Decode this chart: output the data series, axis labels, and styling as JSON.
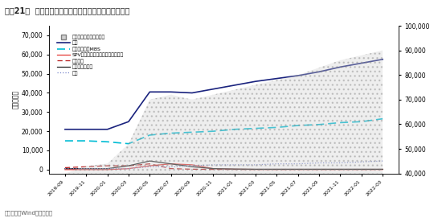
{
  "title": "图表21：  海外流动性总量：美联储资产负债表缓慢扩张",
  "footnote": "资料来源：Wind，华泰研究",
  "ylabel_left": "（亿美元）",
  "ylabel_right": "总资产（右轴，亿美元）",
  "dates": [
    "2019-09",
    "2019-11",
    "2020-01",
    "2020-03",
    "2020-05",
    "2020-07",
    "2020-09",
    "2020-11",
    "2021-01",
    "2021-03",
    "2021-05",
    "2021-07",
    "2021-09",
    "2021-11",
    "2022-01",
    "2022-03"
  ],
  "guozhai": [
    21000,
    21000,
    21000,
    25000,
    40500,
    40500,
    40000,
    42000,
    44000,
    46000,
    47500,
    49000,
    51000,
    53500,
    55500,
    57500
  ],
  "lianbang": [
    15000,
    15000,
    14500,
    13500,
    18000,
    19000,
    19500,
    20000,
    21000,
    21500,
    22000,
    23000,
    23500,
    24500,
    25000,
    26500
  ],
  "spv": [
    0,
    0,
    0,
    500,
    2000,
    3000,
    2500,
    500,
    200,
    100,
    100,
    100,
    100,
    100,
    100,
    100
  ],
  "repo": [
    1000,
    1500,
    2000,
    2000,
    3000,
    500,
    200,
    100,
    100,
    100,
    100,
    100,
    100,
    100,
    100,
    100
  ],
  "央行互换": [
    500,
    500,
    500,
    2000,
    4500,
    3000,
    1500,
    500,
    300,
    200,
    200,
    200,
    200,
    200,
    200,
    200
  ],
  "qita": [
    500,
    500,
    500,
    500,
    1500,
    1500,
    2000,
    2500,
    2500,
    2500,
    3000,
    3000,
    3500,
    3500,
    4000,
    4500
  ],
  "total_assets": [
    40000,
    43000,
    44000,
    52000,
    70000,
    72000,
    70000,
    72000,
    74000,
    76000,
    78000,
    80000,
    83000,
    86000,
    88000,
    90000
  ],
  "colors": {
    "guozhai": "#1a237e",
    "lianbang": "#00bcd4",
    "spv": "#e53935",
    "repo": "#b71c1c",
    "央行互换": "#212121",
    "qita": "#7986cb",
    "fill": "#d0d0d0"
  }
}
